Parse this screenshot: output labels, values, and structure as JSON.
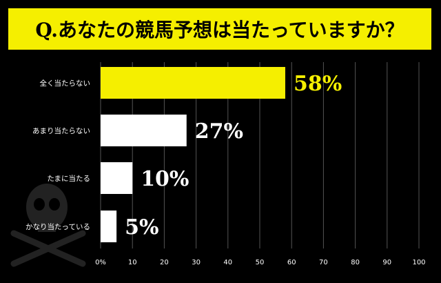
{
  "title": "Q.あなたの競馬予想は当たっていますか？",
  "colors": {
    "background": "#000000",
    "banner": "#f5ef00",
    "highlight_bar": "#f5ef00",
    "bar": "#ffffff",
    "grid": "#555555"
  },
  "chart_data": {
    "type": "bar",
    "orientation": "horizontal",
    "categories": [
      "全く当たらない",
      "あまり当たらない",
      "たまに当たる",
      "かなり当たっている"
    ],
    "values": [
      58,
      27,
      10,
      5
    ],
    "value_labels": [
      "58%",
      "27%",
      "10%",
      "5%"
    ],
    "highlight_index": 0,
    "xlim": [
      0,
      100
    ],
    "x_ticks": [
      0,
      10,
      20,
      30,
      40,
      50,
      60,
      70,
      80,
      90,
      100
    ],
    "x_tick_labels": [
      "0%",
      "10",
      "20",
      "30",
      "40",
      "50",
      "60",
      "70",
      "80",
      "90",
      "100"
    ],
    "grid": true,
    "legend": false
  }
}
